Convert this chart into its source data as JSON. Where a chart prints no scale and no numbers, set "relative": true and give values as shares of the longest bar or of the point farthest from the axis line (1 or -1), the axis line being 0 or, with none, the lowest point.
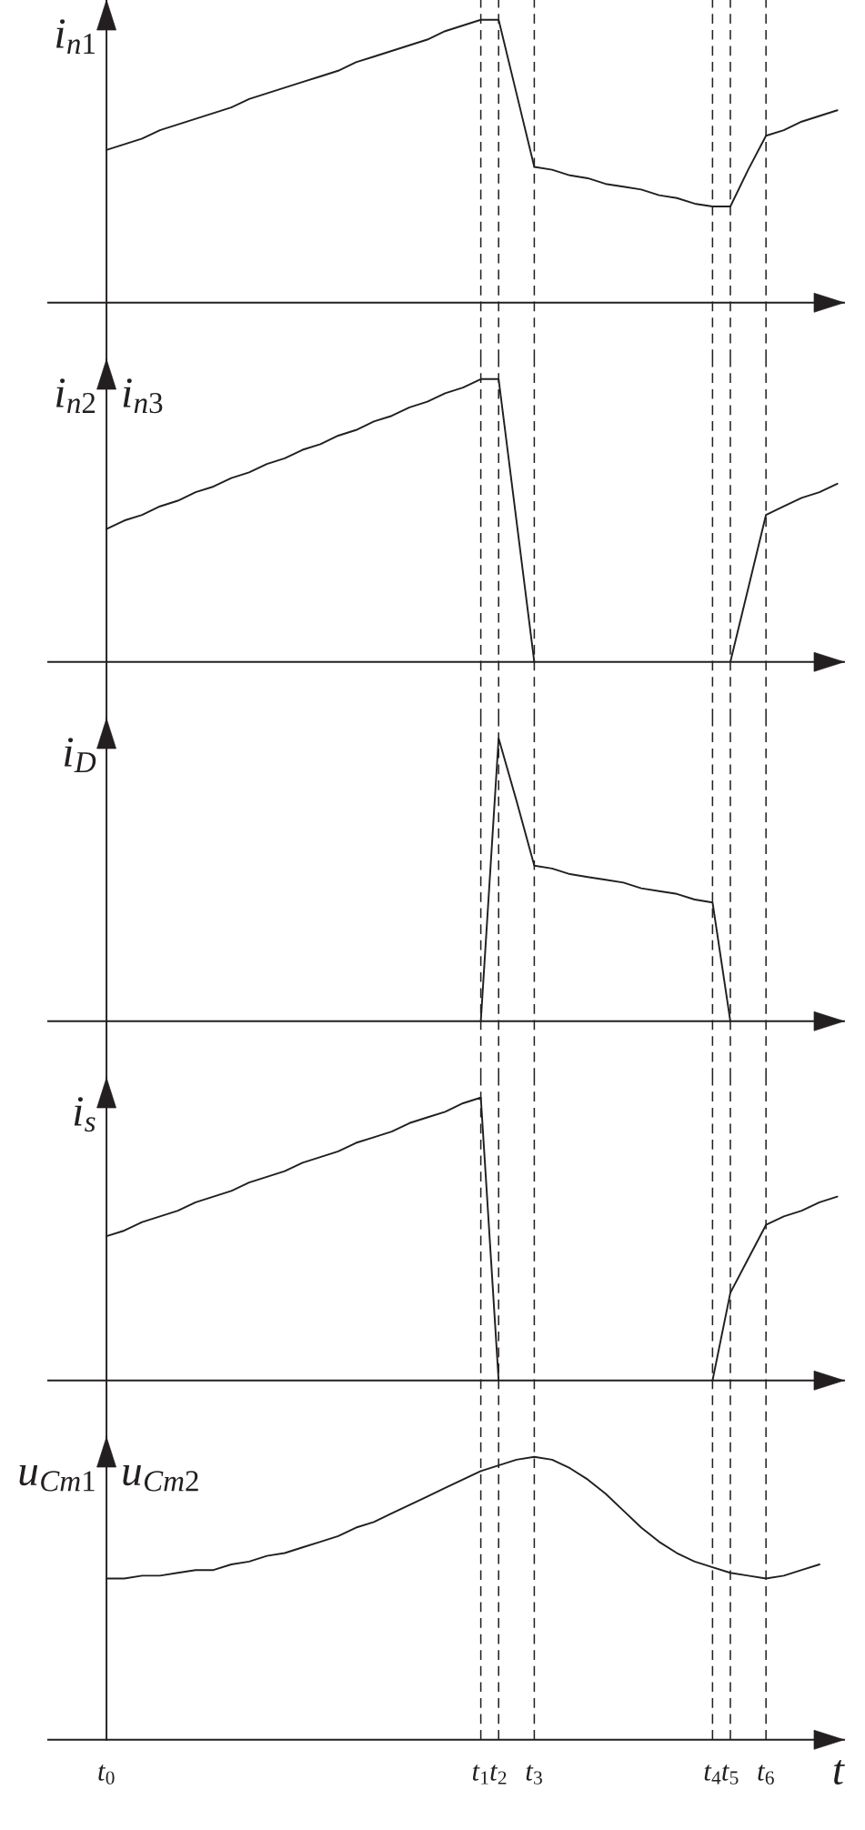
{
  "chart_data": [
    {
      "type": "line",
      "relative": true,
      "ylabel": "i$_{n1}$",
      "categories": [
        "t$_{0}$",
        null,
        null,
        null,
        null,
        null,
        null,
        null,
        null,
        null,
        null,
        null,
        null,
        null,
        null,
        null,
        null,
        null,
        null,
        null,
        null,
        "t$_{1}$",
        "t$_{2}$",
        null,
        "t$_{3}$",
        null,
        null,
        null,
        null,
        null,
        null,
        null,
        null,
        null,
        "t$_{4}$",
        "t$_{5}$",
        null,
        "t$_{6}$",
        null,
        null,
        null,
        null
      ],
      "series": [
        {
          "color": "#231f20",
          "values": [
            0.54,
            0.56,
            0.58,
            0.61,
            0.63,
            0.65,
            0.67,
            0.69,
            0.72,
            0.74,
            0.76,
            0.78,
            0.8,
            0.82,
            0.85,
            0.87,
            0.89,
            0.91,
            0.93,
            0.96,
            0.98,
            1,
            1,
            0.74,
            0.48,
            0.47,
            0.45,
            0.44,
            0.42,
            0.41,
            0.4,
            0.38,
            0.37,
            0.35,
            0.34,
            0.34,
            0.47,
            0.59,
            0.61,
            0.64,
            0.66,
            0.68
          ]
        }
      ],
      "tick_labels": false,
      "ref_lines": [
        {
          "axis": "x",
          "value": "t$_{1}$",
          "line_style": "dashed"
        },
        {
          "axis": "x",
          "value": "t$_{2}$",
          "line_style": "dashed"
        },
        {
          "axis": "x",
          "value": "t$_{3}$",
          "line_style": "dashed"
        },
        {
          "axis": "x",
          "value": "t$_{4}$",
          "line_style": "dashed"
        },
        {
          "axis": "x",
          "value": "t$_{5}$",
          "line_style": "dashed"
        },
        {
          "axis": "x",
          "value": "t$_{6}$",
          "line_style": "dashed"
        }
      ]
    },
    {
      "type": "line",
      "relative": true,
      "ylabel": "i$_{n2}$",
      "annotations": [
        "i$_{n3}$"
      ],
      "categories": [
        "t$_{0}$",
        null,
        null,
        null,
        null,
        null,
        null,
        null,
        null,
        null,
        null,
        null,
        null,
        null,
        null,
        null,
        null,
        null,
        null,
        null,
        null,
        "t$_{1}$",
        "t$_{2}$",
        null,
        "t$_{3}$",
        null,
        null,
        null,
        null,
        null,
        null,
        null,
        null,
        null,
        "t$_{4}$",
        "t$_{5}$",
        null,
        "t$_{6}$",
        null,
        null,
        null,
        null
      ],
      "series": [
        {
          "color": "#231f20",
          "values": [
            0.47,
            0.5,
            0.52,
            0.55,
            0.57,
            0.6,
            0.62,
            0.65,
            0.67,
            0.7,
            0.72,
            0.75,
            0.77,
            0.8,
            0.82,
            0.85,
            0.87,
            0.9,
            0.92,
            0.95,
            0.97,
            1,
            1,
            0.5,
            0,
            null,
            null,
            null,
            null,
            null,
            null,
            null,
            null,
            null,
            null,
            0,
            0.26,
            0.52,
            0.55,
            0.58,
            0.6,
            0.63
          ]
        }
      ],
      "tick_labels": false,
      "ref_lines": [
        {
          "axis": "x",
          "value": "t$_{1}$",
          "line_style": "dashed"
        },
        {
          "axis": "x",
          "value": "t$_{2}$",
          "line_style": "dashed"
        },
        {
          "axis": "x",
          "value": "t$_{3}$",
          "line_style": "dashed"
        },
        {
          "axis": "x",
          "value": "t$_{4}$",
          "line_style": "dashed"
        },
        {
          "axis": "x",
          "value": "t$_{5}$",
          "line_style": "dashed"
        },
        {
          "axis": "x",
          "value": "t$_{6}$",
          "line_style": "dashed"
        }
      ]
    },
    {
      "type": "line",
      "relative": true,
      "ylabel": "i$_{D}$",
      "categories": [
        "t$_{0}$",
        null,
        null,
        null,
        null,
        null,
        null,
        null,
        null,
        null,
        null,
        null,
        null,
        null,
        null,
        null,
        null,
        null,
        null,
        null,
        null,
        "t$_{1}$",
        "t$_{2}$",
        null,
        "t$_{3}$",
        null,
        null,
        null,
        null,
        null,
        null,
        null,
        null,
        null,
        "t$_{4}$",
        "t$_{5}$",
        null,
        "t$_{6}$",
        null,
        null,
        null,
        null
      ],
      "series": [
        {
          "color": "#231f20",
          "values": [
            null,
            null,
            null,
            null,
            null,
            null,
            null,
            null,
            null,
            null,
            null,
            null,
            null,
            null,
            null,
            null,
            null,
            null,
            null,
            null,
            null,
            0,
            1,
            0.78,
            0.55,
            0.54,
            0.52,
            0.51,
            0.5,
            0.49,
            0.47,
            0.46,
            0.45,
            0.43,
            0.42,
            0,
            null,
            null,
            null,
            null,
            null,
            null
          ]
        }
      ],
      "tick_labels": false,
      "ref_lines": [
        {
          "axis": "x",
          "value": "t$_{1}$",
          "line_style": "dashed"
        },
        {
          "axis": "x",
          "value": "t$_{2}$",
          "line_style": "dashed"
        },
        {
          "axis": "x",
          "value": "t$_{3}$",
          "line_style": "dashed"
        },
        {
          "axis": "x",
          "value": "t$_{4}$",
          "line_style": "dashed"
        },
        {
          "axis": "x",
          "value": "t$_{5}$",
          "line_style": "dashed"
        },
        {
          "axis": "x",
          "value": "t$_{6}$",
          "line_style": "dashed"
        }
      ]
    },
    {
      "type": "line",
      "relative": true,
      "ylabel": "i$_{s}$",
      "categories": [
        "t$_{0}$",
        null,
        null,
        null,
        null,
        null,
        null,
        null,
        null,
        null,
        null,
        null,
        null,
        null,
        null,
        null,
        null,
        null,
        null,
        null,
        null,
        "t$_{1}$",
        "t$_{2}$",
        null,
        "t$_{3}$",
        null,
        null,
        null,
        null,
        null,
        null,
        null,
        null,
        null,
        "t$_{4}$",
        "t$_{5}$",
        null,
        "t$_{6}$",
        null,
        null,
        null,
        null
      ],
      "series": [
        {
          "color": "#231f20",
          "values": [
            0.51,
            0.53,
            0.56,
            0.58,
            0.6,
            0.63,
            0.65,
            0.67,
            0.7,
            0.72,
            0.74,
            0.77,
            0.79,
            0.81,
            0.84,
            0.86,
            0.88,
            0.91,
            0.93,
            0.95,
            0.98,
            1,
            0,
            null,
            null,
            null,
            null,
            null,
            null,
            null,
            null,
            null,
            null,
            null,
            0,
            0.31,
            0.43,
            0.55,
            0.58,
            0.6,
            0.63,
            0.65
          ]
        }
      ],
      "tick_labels": false,
      "ref_lines": [
        {
          "axis": "x",
          "value": "t$_{1}$",
          "line_style": "dashed"
        },
        {
          "axis": "x",
          "value": "t$_{2}$",
          "line_style": "dashed"
        },
        {
          "axis": "x",
          "value": "t$_{3}$",
          "line_style": "dashed"
        },
        {
          "axis": "x",
          "value": "t$_{4}$",
          "line_style": "dashed"
        },
        {
          "axis": "x",
          "value": "t$_{5}$",
          "line_style": "dashed"
        },
        {
          "axis": "x",
          "value": "t$_{6}$",
          "line_style": "dashed"
        }
      ]
    },
    {
      "type": "line",
      "relative": true,
      "ylabel": "u$_{Cm1}$",
      "annotations": [
        "u$_{Cm2}$"
      ],
      "xlabel": "t",
      "categories": [
        "t$_{0}$",
        null,
        null,
        null,
        null,
        null,
        null,
        null,
        null,
        null,
        null,
        null,
        null,
        null,
        null,
        null,
        null,
        null,
        null,
        null,
        null,
        "t$_{1}$",
        "t$_{2}$",
        null,
        "t$_{3}$",
        null,
        null,
        null,
        null,
        null,
        null,
        null,
        null,
        null,
        "t$_{4}$",
        "t$_{5}$",
        null,
        "t$_{6}$",
        null,
        null,
        null,
        null
      ],
      "series": [
        {
          "color": "#231f20",
          "values": [
            0.57,
            0.57,
            0.58,
            0.58,
            0.59,
            0.6,
            0.6,
            0.62,
            0.63,
            0.65,
            0.66,
            0.68,
            0.7,
            0.72,
            0.75,
            0.77,
            0.8,
            0.83,
            0.86,
            0.89,
            0.92,
            0.95,
            0.97,
            0.99,
            1,
            0.99,
            0.96,
            0.92,
            0.87,
            0.81,
            0.75,
            0.7,
            0.66,
            0.63,
            0.61,
            0.59,
            0.58,
            0.57,
            0.58,
            0.6,
            0.62,
            null
          ]
        }
      ],
      "tick_labels": "x",
      "ref_lines": [
        {
          "axis": "x",
          "value": "t$_{1}$",
          "line_style": "dashed"
        },
        {
          "axis": "x",
          "value": "t$_{2}$",
          "line_style": "dashed"
        },
        {
          "axis": "x",
          "value": "t$_{3}$",
          "line_style": "dashed"
        },
        {
          "axis": "x",
          "value": "t$_{4}$",
          "line_style": "dashed"
        },
        {
          "axis": "x",
          "value": "t$_{5}$",
          "line_style": "dashed"
        },
        {
          "axis": "x",
          "value": "t$_{6}$",
          "line_style": "dashed"
        }
      ]
    }
  ]
}
